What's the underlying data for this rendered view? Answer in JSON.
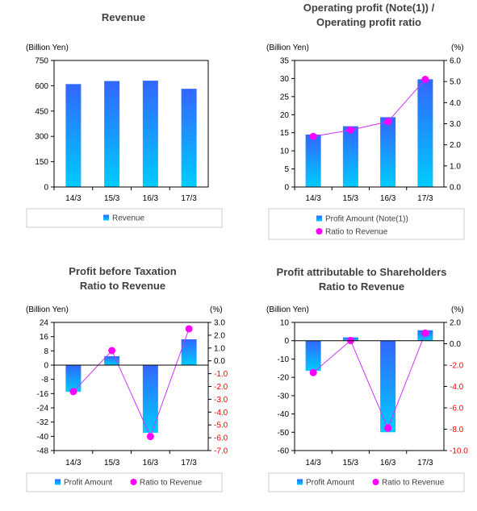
{
  "chart_data": [
    {
      "id": "revenue",
      "type": "bar",
      "title_lines": [
        "Revenue"
      ],
      "unit_left": "(Billion Yen)",
      "unit_right": "",
      "categories": [
        "14/3",
        "15/3",
        "16/3",
        "17/3"
      ],
      "ylim": [
        0,
        750
      ],
      "yticks": [
        "0",
        "150",
        "300",
        "450",
        "600",
        "750"
      ],
      "y2lim": null,
      "y2ticks": [],
      "series": [
        {
          "name": "Revenue",
          "kind": "bar",
          "axis": "left",
          "values": [
            610,
            628,
            630,
            582
          ]
        }
      ],
      "legend": "bottom",
      "grid": false
    },
    {
      "id": "operating",
      "type": "bar",
      "title_lines": [
        "Operating profit (Note(1)) /",
        "Operating profit ratio"
      ],
      "unit_left": "(Billion Yen)",
      "unit_right": "(%)",
      "categories": [
        "14/3",
        "15/3",
        "16/3",
        "17/3"
      ],
      "ylim": [
        0,
        35
      ],
      "yticks": [
        "0",
        "5",
        "10",
        "15",
        "20",
        "25",
        "30",
        "35"
      ],
      "y2lim": [
        0,
        6
      ],
      "y2ticks": [
        "0.0",
        "1.0",
        "2.0",
        "3.0",
        "4.0",
        "5.0",
        "6.0"
      ],
      "series": [
        {
          "name": "Profit Amount (Note(1))",
          "kind": "bar",
          "axis": "left",
          "values": [
            14.5,
            16.8,
            19.3,
            29.8
          ]
        },
        {
          "name": "Ratio to Revenue",
          "kind": "line",
          "axis": "right",
          "values": [
            2.4,
            2.7,
            3.1,
            5.1
          ]
        }
      ],
      "legend": "bottom",
      "grid": false
    },
    {
      "id": "pretax",
      "type": "bar",
      "title_lines": [
        "Profit before Taxation",
        "Ratio to Revenue"
      ],
      "unit_left": "(Billion Yen)",
      "unit_right": "(%)",
      "categories": [
        "14/3",
        "15/3",
        "16/3",
        "17/3"
      ],
      "ylim": [
        -48,
        24
      ],
      "yticks": [
        "24",
        "16",
        "8",
        "0",
        "-8",
        "-16",
        "-24",
        "-32",
        "-40",
        "-48"
      ],
      "y2lim": [
        -7,
        3
      ],
      "y2ticks": [
        "3.0",
        "2.0",
        "1.0",
        "0.0",
        "-1.0",
        "-2.0",
        "-3.0",
        "-4.0",
        "-5.0",
        "-6.0",
        "-7.0"
      ],
      "series": [
        {
          "name": "Profit Amount",
          "kind": "bar",
          "axis": "left",
          "values": [
            -15,
            5,
            -38,
            14.5
          ]
        },
        {
          "name": "Ratio to Revenue",
          "kind": "line",
          "axis": "right",
          "values": [
            -2.4,
            0.8,
            -5.9,
            2.5
          ]
        }
      ],
      "legend": "bottom",
      "grid": false
    },
    {
      "id": "shareholders",
      "type": "bar",
      "title_lines": [
        "Profit attributable to Shareholders",
        "Ratio to Revenue"
      ],
      "unit_left": "(Billion Yen)",
      "unit_right": "(%)",
      "categories": [
        "14/3",
        "15/3",
        "16/3",
        "17/3"
      ],
      "ylim": [
        -60,
        10
      ],
      "yticks": [
        "10",
        "0",
        "-10",
        "-20",
        "-30",
        "-40",
        "-50",
        "-60"
      ],
      "y2lim": [
        -10,
        2
      ],
      "y2ticks": [
        "2.0",
        "0.0",
        "-2.0",
        "-4.0",
        "-6.0",
        "-8.0",
        "-10.0"
      ],
      "series": [
        {
          "name": "Profit Amount",
          "kind": "bar",
          "axis": "left",
          "values": [
            -16.5,
            1.8,
            -50,
            5.7
          ]
        },
        {
          "name": "Ratio to Revenue",
          "kind": "line",
          "axis": "right",
          "values": [
            -2.7,
            0.3,
            -7.9,
            1.0
          ]
        }
      ],
      "legend": "bottom",
      "grid": false
    }
  ],
  "colors": {
    "bar_top": "#3366ff",
    "bar_bottom": "#00ccff",
    "line": "#cc33ff",
    "marker": "#ff00ff",
    "axis": "#000000",
    "negative_tick": "#ff0000",
    "legend_border": "#cccccc"
  }
}
